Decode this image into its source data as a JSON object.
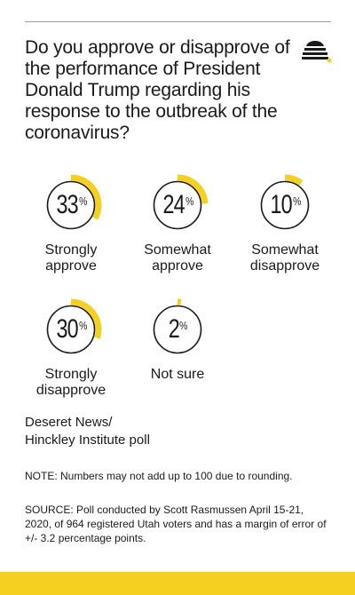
{
  "question": "Do you approve or disapprove of the performance of President Donald Trump regarding his response to the outbreak of the coronavirus?",
  "accent_color": "#f6d020",
  "ring_color": "#1a1a1a",
  "logo_icon": "beehive-icon",
  "chart_data": {
    "type": "pie",
    "title": "Do you approve or disapprove of the performance of President Donald Trump regarding his response to the outbreak of the coronavirus?",
    "categories": [
      "Strongly approve",
      "Somewhat approve",
      "Somewhat disapprove",
      "Strongly disapprove",
      "Not sure"
    ],
    "values": [
      33,
      24,
      10,
      30,
      2
    ],
    "unit": "%",
    "items": [
      {
        "value": "33",
        "unit": "%",
        "label_lines": [
          "Strongly",
          "approve"
        ]
      },
      {
        "value": "24",
        "unit": "%",
        "label_lines": [
          "Somewhat",
          "approve"
        ]
      },
      {
        "value": "10",
        "unit": "%",
        "label_lines": [
          "Somewhat",
          "disapprove"
        ]
      },
      {
        "value": "30",
        "unit": "%",
        "label_lines": [
          "Strongly",
          "disapprove"
        ]
      },
      {
        "value": "2",
        "unit": "%",
        "label_lines": [
          "Not sure"
        ]
      }
    ]
  },
  "source_name_lines": [
    "Deseret News/",
    "Hinckley Institute poll"
  ],
  "note": "NOTE: Numbers may not add up to 100 due to rounding.",
  "source": "SOURCE: Poll conducted by Scott Rasmussen April 15-21, 2020, of 964 registered Utah voters and has a margin of error of +/- 3.2 percentage points."
}
